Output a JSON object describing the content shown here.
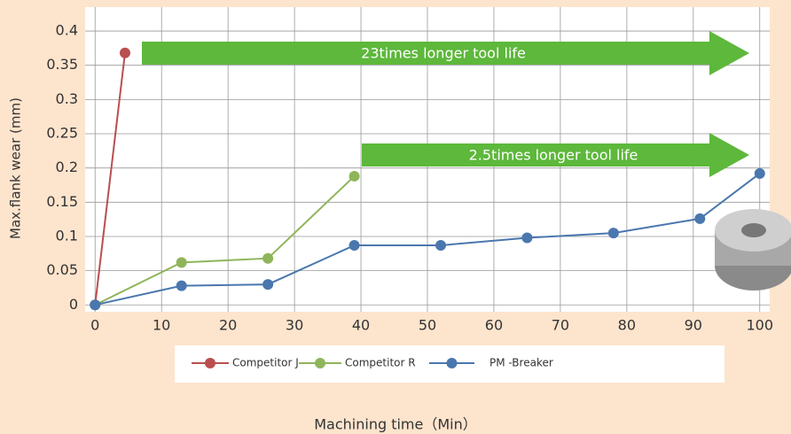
{
  "chart_data": {
    "type": "line",
    "x_label": "Machining time（Min）",
    "y_label": "Max.flank wear (mm)",
    "annotations": [
      "23times longer tool life",
      "2.5times longer tool life"
    ],
    "xlim": [
      -1.5,
      101.5
    ],
    "ylim": [
      -0.01,
      0.435
    ],
    "xticks": [
      0,
      10,
      20,
      30,
      40,
      50,
      60,
      70,
      80,
      90,
      100
    ],
    "yticks": [
      0,
      0.05,
      0.1,
      0.15,
      0.2,
      0.25,
      0.3,
      0.35,
      0.4
    ],
    "grid": true,
    "series": [
      {
        "name": "Competitor J",
        "color": "#b94f50",
        "x": [
          0,
          4.5
        ],
        "values": [
          0,
          0.368
        ]
      },
      {
        "name": "Competitor R",
        "color": "#8fb55b",
        "x": [
          0,
          13,
          26,
          39
        ],
        "values": [
          0,
          0.062,
          0.068,
          0.188
        ]
      },
      {
        "name": "PM -Breaker",
        "color": "#4a77ae",
        "x": [
          0,
          13,
          26,
          39,
          52,
          65,
          78,
          91,
          100
        ],
        "values": [
          0,
          0.028,
          0.03,
          0.087,
          0.087,
          0.098,
          0.105,
          0.126,
          0.192
        ]
      }
    ]
  }
}
